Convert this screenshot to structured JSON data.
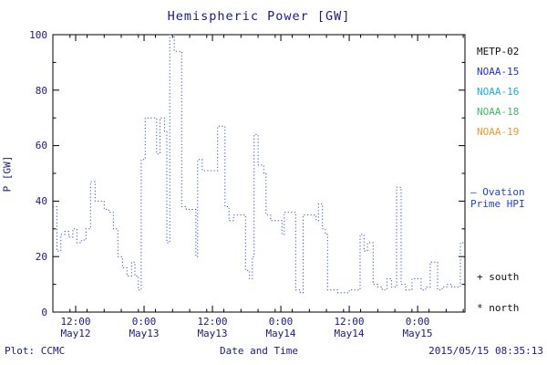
{
  "title": "Hemispheric Power [GW]",
  "axes": {
    "ylabel": "P [GW]",
    "xlabel": "Date and Time",
    "yticks": [
      "100",
      "80",
      "60",
      "40",
      "20",
      "0"
    ],
    "xticks": [
      {
        "time": "12:00",
        "date": "May12"
      },
      {
        "time": "0:00",
        "date": "May13"
      },
      {
        "time": "12:00",
        "date": "May13"
      },
      {
        "time": "0:00",
        "date": "May14"
      },
      {
        "time": "12:00",
        "date": "May14"
      },
      {
        "time": "0:00",
        "date": "May15"
      }
    ]
  },
  "legend": {
    "satellites": [
      {
        "label": "METP-02",
        "color": "#111111"
      },
      {
        "label": "NOAA-15",
        "color": "#2233cc"
      },
      {
        "label": "NOAA-16",
        "color": "#22aadd"
      },
      {
        "label": "NOAA-18",
        "color": "#44bb66"
      },
      {
        "label": "NOAA-19",
        "color": "#ee9933"
      }
    ],
    "ovation": {
      "marker": "–",
      "line1": "Ovation",
      "line2": "Prime HPI",
      "color": "#2244cc"
    },
    "south": "+ south",
    "north": "* north"
  },
  "footer": {
    "plot_credit": "Plot: CCMC",
    "timestamp": "2015/05/15 08:35:13"
  },
  "chart_data": {
    "type": "line",
    "style": "dotted-step",
    "title": "Hemispheric Power [GW]",
    "xlabel": "Date and Time",
    "ylabel": "P [GW]",
    "ylim": [
      0,
      100
    ],
    "x_start": "2015-05-12 08:00",
    "x_range_hours": 72.3,
    "xtick_hours": [
      4,
      16,
      28,
      40,
      52,
      64
    ],
    "ytick_major": [
      0,
      20,
      40,
      60,
      80,
      100
    ],
    "y_minor_step": 10,
    "x_minor_step_hours": 3,
    "line_color": "#3050d0",
    "axis_color": "#000000",
    "points": [
      [
        0,
        38
      ],
      [
        0.7,
        22
      ],
      [
        1.4,
        28
      ],
      [
        2.1,
        29
      ],
      [
        2.8,
        27
      ],
      [
        3.5,
        30
      ],
      [
        4.2,
        25
      ],
      [
        5,
        26
      ],
      [
        5.8,
        30
      ],
      [
        6.6,
        47
      ],
      [
        7.4,
        40
      ],
      [
        8.2,
        40
      ],
      [
        9,
        37
      ],
      [
        9.8,
        36
      ],
      [
        10.6,
        30
      ],
      [
        11.4,
        20
      ],
      [
        12.2,
        16
      ],
      [
        13,
        13
      ],
      [
        13.8,
        18
      ],
      [
        14.4,
        13
      ],
      [
        15,
        8
      ],
      [
        15.5,
        55
      ],
      [
        16.2,
        70
      ],
      [
        17.5,
        70
      ],
      [
        18.2,
        57
      ],
      [
        18.8,
        70
      ],
      [
        19.6,
        65
      ],
      [
        20,
        25
      ],
      [
        20.5,
        100
      ],
      [
        21.3,
        94
      ],
      [
        22.6,
        38
      ],
      [
        23.4,
        37
      ],
      [
        24.8,
        37
      ],
      [
        25.1,
        20
      ],
      [
        25.4,
        55
      ],
      [
        26.2,
        51
      ],
      [
        28.3,
        51
      ],
      [
        28.9,
        67
      ],
      [
        30.2,
        38
      ],
      [
        30.9,
        33
      ],
      [
        31.7,
        35
      ],
      [
        33.5,
        35
      ],
      [
        33.8,
        15
      ],
      [
        34.5,
        12
      ],
      [
        35,
        20
      ],
      [
        35.3,
        64
      ],
      [
        36,
        53
      ],
      [
        37,
        50
      ],
      [
        37.4,
        35
      ],
      [
        38.2,
        33
      ],
      [
        39.5,
        33
      ],
      [
        40.2,
        28
      ],
      [
        40.6,
        36
      ],
      [
        42.2,
        36
      ],
      [
        42.6,
        8
      ],
      [
        43.4,
        7
      ],
      [
        43.9,
        35
      ],
      [
        45.8,
        35
      ],
      [
        46.2,
        33
      ],
      [
        46.6,
        39
      ],
      [
        47.3,
        30
      ],
      [
        47.8,
        28
      ],
      [
        48.2,
        8
      ],
      [
        49,
        8
      ],
      [
        50,
        7
      ],
      [
        51,
        7
      ],
      [
        52,
        8
      ],
      [
        53.5,
        8
      ],
      [
        53.9,
        28
      ],
      [
        54.6,
        22
      ],
      [
        55.2,
        25
      ],
      [
        56.2,
        10
      ],
      [
        57,
        9
      ],
      [
        57.8,
        8
      ],
      [
        58.6,
        12
      ],
      [
        59.4,
        9
      ],
      [
        60.3,
        45
      ],
      [
        61.1,
        10
      ],
      [
        61.9,
        8
      ],
      [
        63,
        12
      ],
      [
        64.6,
        8
      ],
      [
        65.4,
        9
      ],
      [
        66.2,
        18
      ],
      [
        67.5,
        8
      ],
      [
        68.3,
        9
      ],
      [
        69.1,
        10
      ],
      [
        70,
        9
      ],
      [
        70.8,
        9
      ],
      [
        71.5,
        25
      ],
      [
        72.3,
        25
      ]
    ]
  }
}
